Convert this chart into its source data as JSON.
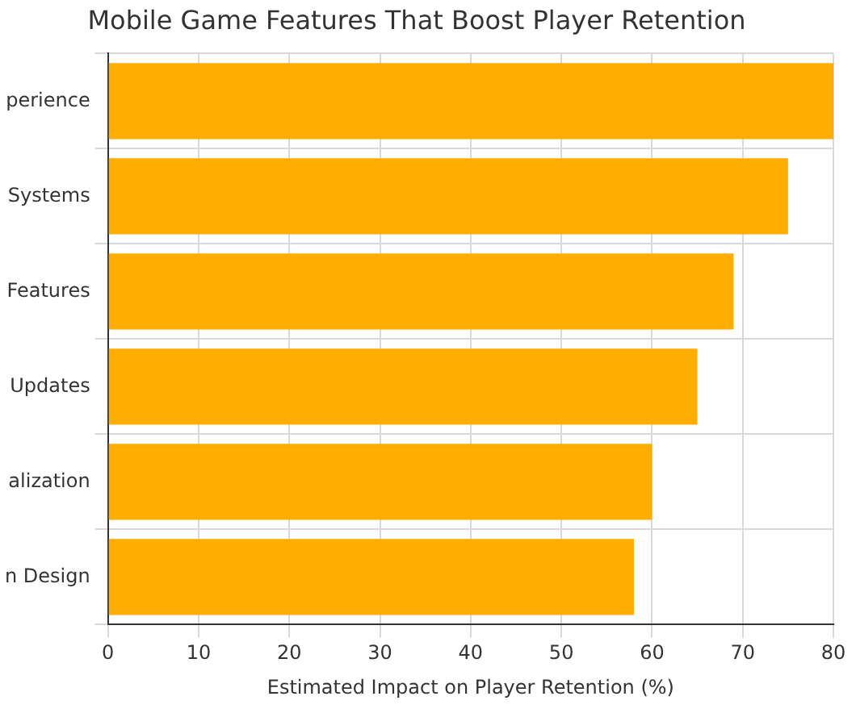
{
  "chart_data": {
    "type": "bar",
    "orientation": "horizontal",
    "title": "Mobile Game Features That Boost Player Retention",
    "xlabel": "Estimated Impact on Player Retention (%)",
    "categories": [
      "perience",
      "Systems",
      "Features",
      "Updates",
      "alization",
      "n Design"
    ],
    "values": [
      80,
      75,
      69,
      65,
      60,
      58
    ],
    "color": "#ffae00",
    "xlim": [
      0,
      80
    ],
    "xticks": [
      0,
      10,
      20,
      30,
      40,
      50,
      60,
      70,
      80
    ],
    "grid": true
  }
}
